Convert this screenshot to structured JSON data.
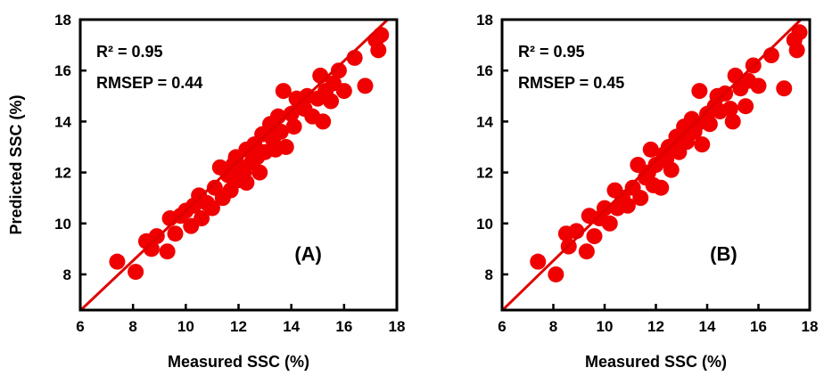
{
  "chart_data": [
    {
      "type": "scatter",
      "panel_label": "(A)",
      "xlabel": "Measured SSC (%)",
      "ylabel": "Predicted SSC (%)",
      "xlim": [
        6,
        18
      ],
      "ylim": [
        6.6,
        18
      ],
      "xticks": [
        "6",
        "8",
        "10",
        "12",
        "14",
        "16",
        "18"
      ],
      "yticks": [
        "8",
        "10",
        "12",
        "14",
        "16",
        "18"
      ],
      "stats": [
        "R² = 0.95",
        "RMSEP = 0.44"
      ],
      "grid": false,
      "marker_color": "#f00000",
      "fit_line": {
        "slope": 0.98,
        "intercept": 0.7,
        "color": "#e00000"
      },
      "points": [
        [
          7.4,
          8.5
        ],
        [
          8.1,
          8.1
        ],
        [
          8.5,
          9.3
        ],
        [
          8.7,
          9.0
        ],
        [
          8.9,
          9.5
        ],
        [
          9.3,
          8.9
        ],
        [
          9.4,
          10.2
        ],
        [
          9.6,
          9.6
        ],
        [
          9.8,
          10.3
        ],
        [
          10.0,
          10.5
        ],
        [
          10.2,
          9.9
        ],
        [
          10.3,
          10.7
        ],
        [
          10.5,
          11.1
        ],
        [
          10.6,
          10.2
        ],
        [
          10.8,
          10.8
        ],
        [
          11.0,
          10.6
        ],
        [
          11.1,
          11.4
        ],
        [
          11.3,
          12.2
        ],
        [
          11.4,
          11.0
        ],
        [
          11.6,
          11.9
        ],
        [
          11.7,
          11.3
        ],
        [
          11.9,
          12.6
        ],
        [
          12.0,
          11.7
        ],
        [
          12.1,
          12.2
        ],
        [
          12.3,
          12.9
        ],
        [
          12.3,
          11.6
        ],
        [
          12.5,
          12.4
        ],
        [
          12.6,
          13.1
        ],
        [
          12.8,
          12.0
        ],
        [
          12.9,
          13.5
        ],
        [
          13.0,
          12.8
        ],
        [
          13.2,
          13.9
        ],
        [
          13.3,
          13.3
        ],
        [
          13.5,
          14.2
        ],
        [
          13.6,
          13.6
        ],
        [
          13.7,
          15.2
        ],
        [
          13.8,
          13.0
        ],
        [
          14.0,
          14.3
        ],
        [
          14.1,
          13.8
        ],
        [
          14.3,
          14.7
        ],
        [
          14.5,
          14.5
        ],
        [
          14.6,
          15.0
        ],
        [
          14.8,
          14.2
        ],
        [
          15.0,
          14.9
        ],
        [
          15.1,
          15.8
        ],
        [
          15.2,
          14.0
        ],
        [
          15.3,
          15.2
        ],
        [
          15.5,
          14.8
        ],
        [
          15.6,
          15.5
        ],
        [
          15.8,
          16.0
        ],
        [
          16.0,
          15.2
        ],
        [
          16.4,
          16.5
        ],
        [
          16.8,
          15.4
        ],
        [
          17.2,
          17.2
        ],
        [
          17.3,
          16.8
        ],
        [
          17.4,
          17.4
        ],
        [
          12.2,
          12.0
        ],
        [
          12.7,
          12.6
        ],
        [
          13.4,
          12.9
        ],
        [
          11.8,
          12.3
        ],
        [
          14.2,
          14.9
        ]
      ]
    },
    {
      "type": "scatter",
      "panel_label": "(B)",
      "xlabel": "Measured SSC (%)",
      "ylabel": "",
      "xlim": [
        6,
        18
      ],
      "ylim": [
        6.6,
        18
      ],
      "xticks": [
        "6",
        "8",
        "10",
        "12",
        "14",
        "16",
        "18"
      ],
      "yticks": [
        "8",
        "10",
        "12",
        "14",
        "16",
        "18"
      ],
      "stats": [
        "R² = 0.95",
        "RMSEP = 0.45"
      ],
      "grid": false,
      "marker_color": "#f00000",
      "fit_line": {
        "slope": 0.98,
        "intercept": 0.7,
        "color": "#e00000"
      },
      "points": [
        [
          7.4,
          8.5
        ],
        [
          8.1,
          8.0
        ],
        [
          8.5,
          9.6
        ],
        [
          8.6,
          9.1
        ],
        [
          8.9,
          9.7
        ],
        [
          9.3,
          8.9
        ],
        [
          9.4,
          10.3
        ],
        [
          9.6,
          9.5
        ],
        [
          9.8,
          10.2
        ],
        [
          10.0,
          10.6
        ],
        [
          10.2,
          10.0
        ],
        [
          10.4,
          11.3
        ],
        [
          10.5,
          10.6
        ],
        [
          10.7,
          11.0
        ],
        [
          10.9,
          10.7
        ],
        [
          11.1,
          11.4
        ],
        [
          11.3,
          12.3
        ],
        [
          11.4,
          11.0
        ],
        [
          11.6,
          11.8
        ],
        [
          11.8,
          12.9
        ],
        [
          11.9,
          11.5
        ],
        [
          12.0,
          12.3
        ],
        [
          12.2,
          11.4
        ],
        [
          12.3,
          12.7
        ],
        [
          12.5,
          13.0
        ],
        [
          12.6,
          12.1
        ],
        [
          12.8,
          13.4
        ],
        [
          12.9,
          12.8
        ],
        [
          13.1,
          13.8
        ],
        [
          13.2,
          13.2
        ],
        [
          13.4,
          14.1
        ],
        [
          13.5,
          13.6
        ],
        [
          13.7,
          15.2
        ],
        [
          13.8,
          13.1
        ],
        [
          14.0,
          14.3
        ],
        [
          14.1,
          13.9
        ],
        [
          14.3,
          14.6
        ],
        [
          14.5,
          14.4
        ],
        [
          14.7,
          15.1
        ],
        [
          14.9,
          14.5
        ],
        [
          15.0,
          14.0
        ],
        [
          15.1,
          15.8
        ],
        [
          15.3,
          15.3
        ],
        [
          15.5,
          14.6
        ],
        [
          15.6,
          15.6
        ],
        [
          15.8,
          16.2
        ],
        [
          16.0,
          15.4
        ],
        [
          16.5,
          16.6
        ],
        [
          17.0,
          15.3
        ],
        [
          17.4,
          17.2
        ],
        [
          17.5,
          16.8
        ],
        [
          17.6,
          17.5
        ],
        [
          12.4,
          12.5
        ],
        [
          13.0,
          13.3
        ],
        [
          13.6,
          13.9
        ],
        [
          11.7,
          12.0
        ],
        [
          14.4,
          15.0
        ]
      ]
    }
  ]
}
